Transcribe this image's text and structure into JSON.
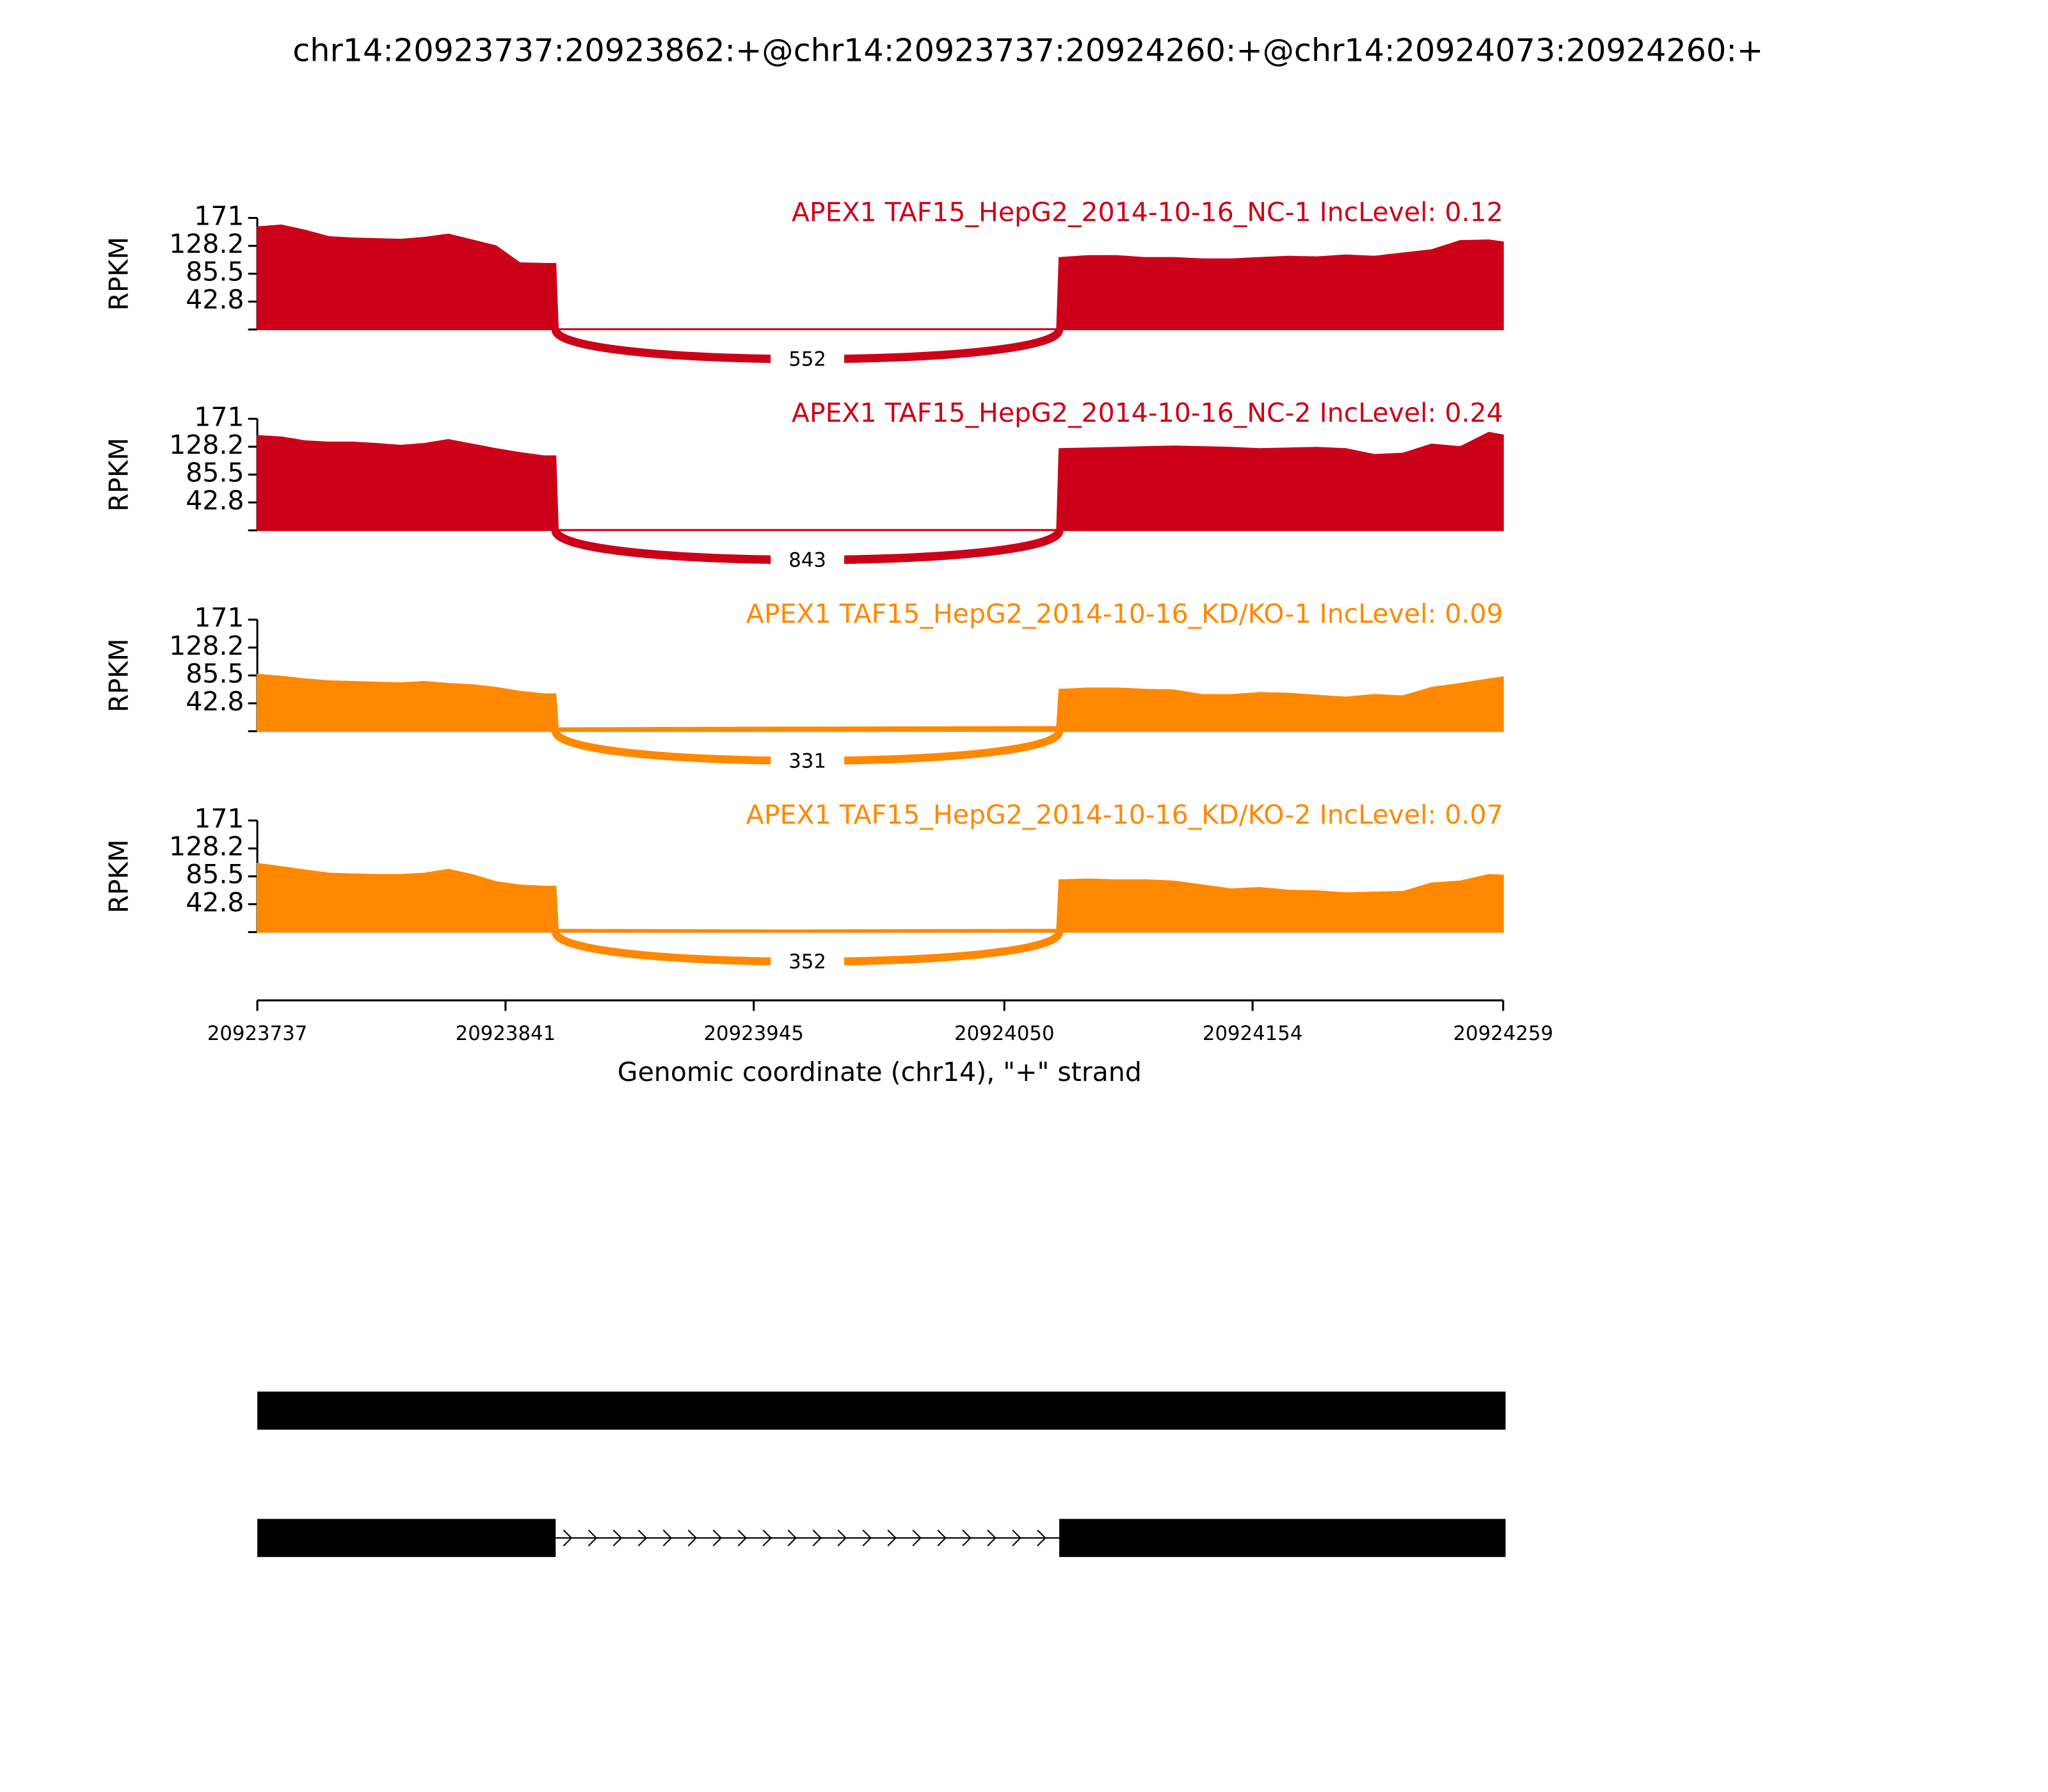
{
  "title": "chr14:20923737:20923862:+@chr14:20923737:20924260:+@chr14:20924073:20924260:+",
  "chart_data": [
    {
      "type": "area",
      "title": "APEX1 TAF15_HepG2_2014-10-16_NC-1 IncLevel: 0.12",
      "ylabel": "RPKM",
      "color": "#cc0018",
      "x": [
        20923737,
        20923747,
        20923757,
        20923767,
        20923777,
        20923787,
        20923797,
        20923807,
        20923817,
        20923827,
        20923837,
        20923847,
        20923857,
        20923862,
        20923863,
        20923960,
        20924072,
        20924073,
        20924085,
        20924097,
        20924109,
        20924121,
        20924133,
        20924145,
        20924157,
        20924169,
        20924181,
        20924193,
        20924205,
        20924217,
        20924229,
        20924241,
        20924253,
        20924259
      ],
      "values": [
        157,
        160,
        152,
        142,
        140,
        139,
        138,
        141,
        146,
        137,
        128,
        102,
        101,
        101,
        1,
        1,
        1,
        110,
        113,
        113,
        110,
        110,
        108,
        108,
        110,
        112,
        111,
        114,
        112,
        117,
        122,
        136,
        137,
        134
      ],
      "ylim": [
        0,
        171
      ],
      "yticks": [
        42.8,
        85.5,
        128.2,
        171
      ],
      "junction": {
        "start": 20923862,
        "end": 20924073,
        "count": 552
      }
    },
    {
      "type": "area",
      "title": "APEX1 TAF15_HepG2_2014-10-16_NC-2 IncLevel: 0.24",
      "ylabel": "RPKM",
      "color": "#cc0018",
      "x": [
        20923737,
        20923747,
        20923757,
        20923767,
        20923777,
        20923787,
        20923797,
        20923807,
        20923817,
        20923827,
        20923837,
        20923847,
        20923857,
        20923862,
        20923863,
        20923960,
        20924072,
        20924073,
        20924085,
        20924097,
        20924109,
        20924121,
        20924133,
        20924145,
        20924157,
        20924169,
        20924181,
        20924193,
        20924205,
        20924217,
        20924229,
        20924241,
        20924253,
        20924259
      ],
      "values": [
        145,
        143,
        137,
        135,
        135,
        133,
        130,
        133,
        139,
        132,
        125,
        119,
        114,
        114,
        1,
        1,
        1,
        125,
        126,
        127,
        128,
        129,
        128,
        127,
        125,
        126,
        127,
        125,
        116,
        118,
        132,
        128,
        150,
        146
      ],
      "ylim": [
        0,
        171
      ],
      "yticks": [
        42.8,
        85.5,
        128.2,
        171
      ],
      "junction": {
        "start": 20923862,
        "end": 20924073,
        "count": 843
      }
    },
    {
      "type": "area",
      "title": "APEX1 TAF15_HepG2_2014-10-16_KD/KO-1 IncLevel: 0.09",
      "ylabel": "RPKM",
      "color": "#ff8800",
      "x": [
        20923737,
        20923747,
        20923757,
        20923767,
        20923777,
        20923787,
        20923797,
        20923807,
        20923817,
        20923827,
        20923837,
        20923847,
        20923857,
        20923862,
        20923863,
        20923960,
        20924072,
        20924073,
        20924085,
        20924097,
        20924109,
        20924121,
        20924133,
        20924145,
        20924157,
        20924169,
        20924181,
        20924193,
        20924205,
        20924217,
        20924229,
        20924241,
        20924253,
        20924259
      ],
      "values": [
        87,
        84,
        80,
        77,
        76,
        75,
        74,
        76,
        73,
        71,
        67,
        61,
        57,
        57,
        5,
        6,
        7,
        64,
        66,
        66,
        64,
        63,
        56,
        56,
        59,
        58,
        55,
        52,
        56,
        54,
        67,
        73,
        80,
        83
      ],
      "ylim": [
        0,
        171
      ],
      "yticks": [
        42.8,
        85.5,
        128.2,
        171
      ],
      "junction": {
        "start": 20923862,
        "end": 20924073,
        "count": 331
      }
    },
    {
      "type": "area",
      "title": "APEX1 TAF15_HepG2_2014-10-16_KD/KO-2 IncLevel: 0.07",
      "ylabel": "RPKM",
      "color": "#ff8800",
      "x": [
        20923737,
        20923747,
        20923757,
        20923767,
        20923777,
        20923787,
        20923797,
        20923807,
        20923817,
        20923827,
        20923837,
        20923847,
        20923857,
        20923862,
        20923863,
        20923960,
        20924072,
        20924073,
        20924085,
        20924097,
        20924109,
        20924121,
        20924133,
        20924145,
        20924157,
        20924169,
        20924181,
        20924193,
        20924205,
        20924217,
        20924229,
        20924241,
        20924253,
        20924259
      ],
      "values": [
        105,
        100,
        95,
        90,
        89,
        88,
        88,
        90,
        96,
        88,
        77,
        72,
        70,
        70,
        4,
        3,
        4,
        80,
        81,
        80,
        80,
        78,
        72,
        66,
        68,
        64,
        63,
        60,
        61,
        62,
        75,
        78,
        88,
        87
      ],
      "ylim": [
        0,
        171
      ],
      "yticks": [
        42.8,
        85.5,
        128.2,
        171
      ],
      "junction": {
        "start": 20923862,
        "end": 20924073,
        "count": 352
      }
    }
  ],
  "x_axis": {
    "label": "Genomic coordinate (chr14), \"+\" strand",
    "xlim": [
      20923737,
      20924259
    ],
    "xticks": [
      20923737,
      20923841,
      20923945,
      20924050,
      20924154,
      20924259
    ]
  },
  "transcripts": [
    {
      "exons": [
        [
          20923737,
          20924260
        ]
      ]
    },
    {
      "exons": [
        [
          20923737,
          20923862
        ],
        [
          20924073,
          20924260
        ]
      ]
    }
  ]
}
